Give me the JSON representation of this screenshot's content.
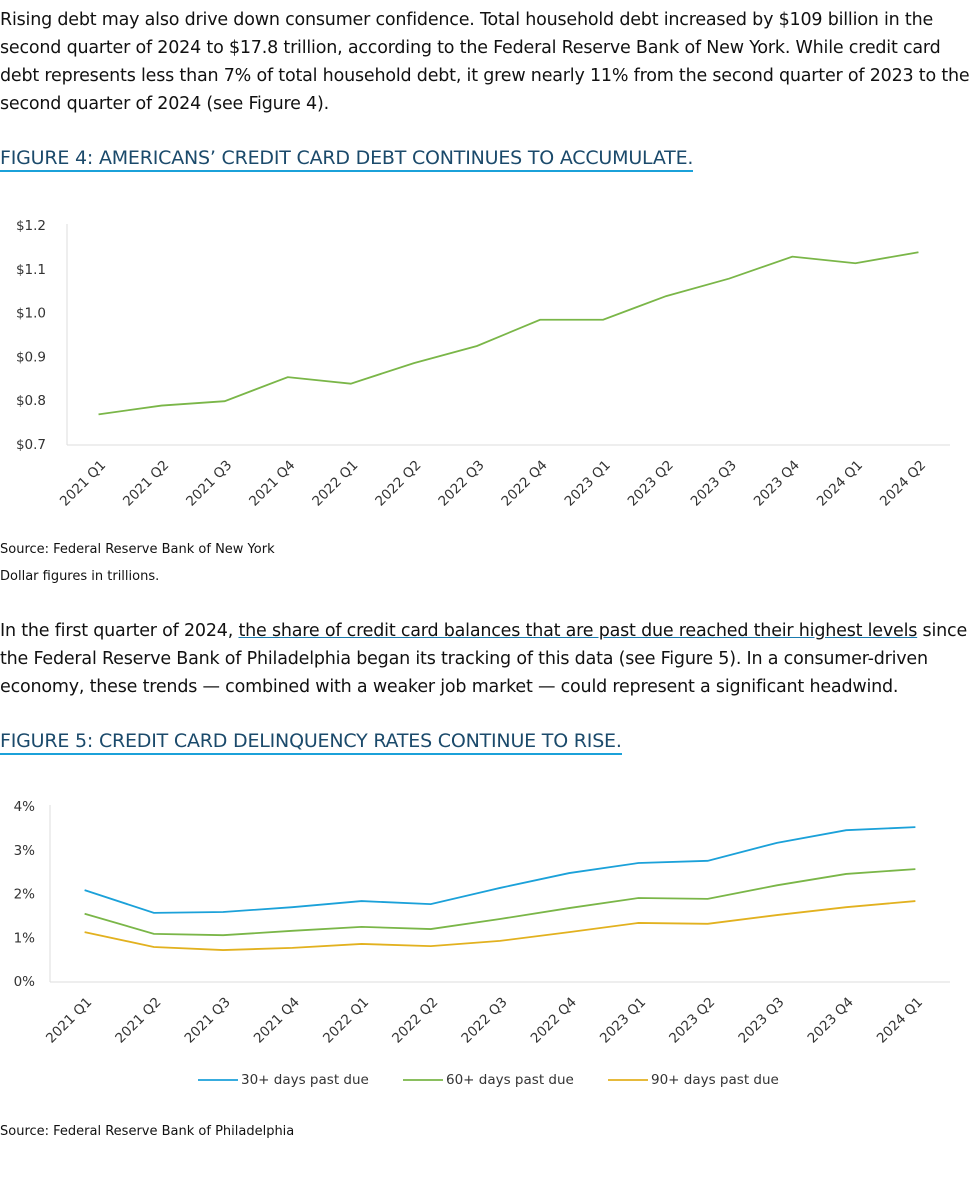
{
  "intro": "Rising debt may also drive down consumer confidence. Total household debt increased by $109 billion in the second quarter of 2024 to $17.8 trillion, according to the Federal Reserve Bank of New York. While credit card debt represents less than 7% of total household debt, it grew nearly 11% from the second quarter of 2023 to the second quarter of 2024 (see Figure 4).",
  "chart_data": [
    {
      "type": "line",
      "title": "FIGURE 4: AMERICANS’ CREDIT CARD DEBT CONTINUES TO ACCUMULATE.",
      "categories": [
        "2021 Q1",
        "2021 Q2",
        "2021 Q3",
        "2021 Q4",
        "2022 Q1",
        "2022 Q2",
        "2022 Q3",
        "2022 Q4",
        "2023 Q1",
        "2023 Q2",
        "2023 Q3",
        "2023 Q4",
        "2024 Q1",
        "2024 Q2"
      ],
      "series": [
        {
          "color": "#7ab648",
          "values": [
            0.77,
            0.79,
            0.8,
            0.855,
            0.84,
            0.887,
            0.926,
            0.986,
            0.986,
            1.04,
            1.08,
            1.13,
            1.115,
            1.14
          ]
        }
      ],
      "ylim": [
        0.7,
        1.2
      ],
      "yticks": [
        {
          "value": 0.7,
          "label": "$0.7"
        },
        {
          "value": 0.8,
          "label": "$0.8"
        },
        {
          "value": 0.9,
          "label": "$0.9"
        },
        {
          "value": 1.0,
          "label": "$1.0"
        },
        {
          "value": 1.1,
          "label": "$1.1"
        },
        {
          "value": 1.2,
          "label": "$1.2"
        }
      ],
      "grid": false,
      "notes": [
        "Source: Federal Reserve Bank of New York",
        "Dollar figures in trillions."
      ]
    },
    {
      "type": "line",
      "title": "FIGURE 5: CREDIT CARD DELINQUENCY RATES CONTINUE TO RISE.",
      "categories": [
        "2021 Q1",
        "2021 Q2",
        "2021 Q3",
        "2021 Q4",
        "2022 Q1",
        "2022 Q2",
        "2022 Q3",
        "2022 Q4",
        "2023 Q1",
        "2023 Q2",
        "2023 Q3",
        "2023 Q4",
        "2024 Q1"
      ],
      "series": [
        {
          "name": "30+ days past due",
          "color": "#1ba1d9",
          "values": [
            2.1,
            1.58,
            1.6,
            1.71,
            1.85,
            1.78,
            2.15,
            2.49,
            2.72,
            2.77,
            3.18,
            3.47,
            3.54
          ]
        },
        {
          "name": "60+ days past due",
          "color": "#7ab648",
          "values": [
            1.56,
            1.1,
            1.07,
            1.17,
            1.26,
            1.21,
            1.44,
            1.69,
            1.92,
            1.9,
            2.21,
            2.47,
            2.58
          ]
        },
        {
          "name": "90+ days past due",
          "color": "#e2b11f",
          "values": [
            1.14,
            0.8,
            0.73,
            0.78,
            0.87,
            0.82,
            0.94,
            1.14,
            1.35,
            1.33,
            1.53,
            1.71,
            1.85
          ]
        }
      ],
      "ylim": [
        0,
        4
      ],
      "yticks": [
        {
          "value": 0,
          "label": "0%"
        },
        {
          "value": 1,
          "label": "1%"
        },
        {
          "value": 2,
          "label": "2%"
        },
        {
          "value": 3,
          "label": "3%"
        },
        {
          "value": 4,
          "label": "4%"
        }
      ],
      "grid": false,
      "legend": "bottom",
      "notes": [
        "Source: Federal Reserve Bank of Philadelphia"
      ]
    }
  ],
  "paragraph": {
    "before": "In the first quarter of 2024, ",
    "link": "the share of credit card balances that are past due reached their highest levels",
    "after": " since the Federal Reserve Bank of Philadelphia began its tracking of this data (see Figure 5). In a consumer-driven economy, these trends — combined with a weaker job market — could represent a significant headwind."
  }
}
